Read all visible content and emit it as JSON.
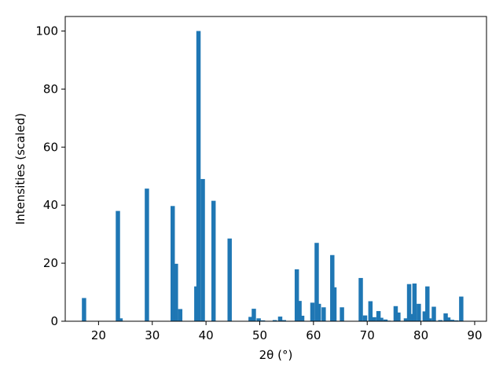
{
  "chart_data": {
    "type": "bar",
    "xlabel": "2θ (°)",
    "ylabel": "Intensities (scaled)",
    "title": "",
    "xlim": [
      13.8,
      92.2
    ],
    "ylim": [
      0,
      105
    ],
    "xticks": [
      20,
      30,
      40,
      50,
      60,
      70,
      80,
      90
    ],
    "yticks": [
      0,
      20,
      40,
      60,
      80,
      100
    ],
    "grid": false,
    "color": "#1f77b4",
    "x": [
      17.3,
      23.6,
      24.1,
      29.0,
      33.8,
      34.4,
      35.2,
      38.2,
      38.6,
      39.4,
      41.4,
      44.4,
      48.3,
      48.9,
      49.8,
      50.6,
      52.8,
      53.8,
      54.5,
      56.9,
      57.4,
      57.9,
      59.8,
      60.6,
      61.0,
      61.9,
      63.5,
      63.9,
      65.3,
      68.8,
      69.6,
      70.6,
      71.3,
      72.1,
      72.6,
      73.4,
      74.0,
      75.3,
      75.8,
      77.2,
      77.8,
      78.4,
      78.8,
      79.6,
      80.7,
      81.2,
      81.6,
      82.4,
      83.6,
      84.6,
      85.1,
      85.8,
      86.6,
      87.5
    ],
    "values": [
      8,
      38,
      1,
      45.7,
      39.7,
      19.8,
      4.2,
      12,
      100,
      49,
      41.5,
      28.5,
      1.5,
      4.3,
      1,
      0.3,
      0.4,
      1.6,
      0.4,
      17.9,
      7,
      1.9,
      6.4,
      27,
      6,
      4.8,
      22.8,
      11.7,
      4.8,
      14.9,
      2,
      6.9,
      1.4,
      3.5,
      1.2,
      0.6,
      0.2,
      5.2,
      3,
      1,
      12.8,
      2.5,
      13,
      6,
      3.4,
      12,
      1,
      5,
      0.4,
      2.7,
      1.3,
      0.5,
      0.3,
      8.5
    ]
  }
}
